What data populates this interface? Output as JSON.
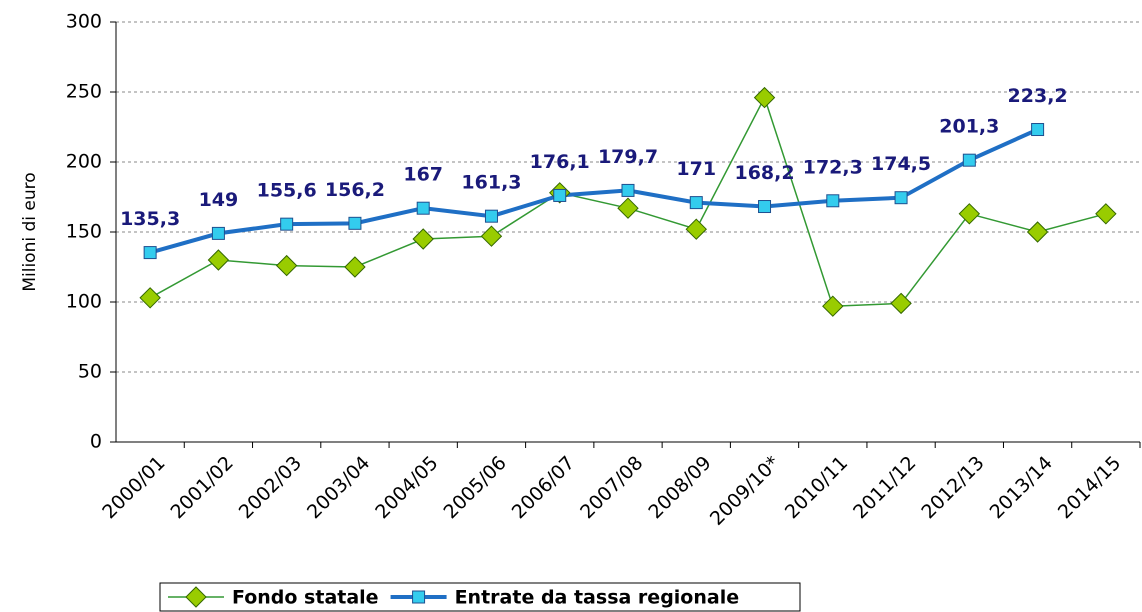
{
  "chart_data": {
    "type": "line",
    "y_label": "Milioni di euro",
    "categories": [
      "2000/01",
      "2001/02",
      "2002/03",
      "2003/04",
      "2004/05",
      "2005/06",
      "2006/07",
      "2007/08",
      "2008/09",
      "2009/10*",
      "2010/11",
      "2011/12",
      "2012/13",
      "2013/14",
      "2014/15"
    ],
    "series": [
      {
        "name": "Fondo statale",
        "color": "#339933",
        "marker": "diamond",
        "marker_color": "#99cc00",
        "values": [
          103,
          130,
          126,
          125,
          145,
          147,
          178,
          167,
          152,
          246,
          97,
          99,
          163,
          150,
          163
        ]
      },
      {
        "name": "Entrate da tassa regionale",
        "color": "#1f6fc5",
        "marker": "square",
        "marker_color": "#33ccee",
        "values": [
          135.3,
          149,
          155.6,
          156.2,
          167,
          161.3,
          176.1,
          179.7,
          171,
          168.2,
          172.3,
          174.5,
          201.3,
          223.2,
          null
        ],
        "value_labels": [
          "135,3",
          "149",
          "155,6",
          "156,2",
          "167",
          "161,3",
          "176,1",
          "179,7",
          "171",
          "168,2",
          "172,3",
          "174,5",
          "201,3",
          "223,2",
          null
        ]
      }
    ],
    "ylim": [
      0,
      300
    ],
    "yticks": [
      0,
      50,
      100,
      150,
      200,
      250,
      300
    ],
    "grid": true,
    "legend": "bottom"
  }
}
